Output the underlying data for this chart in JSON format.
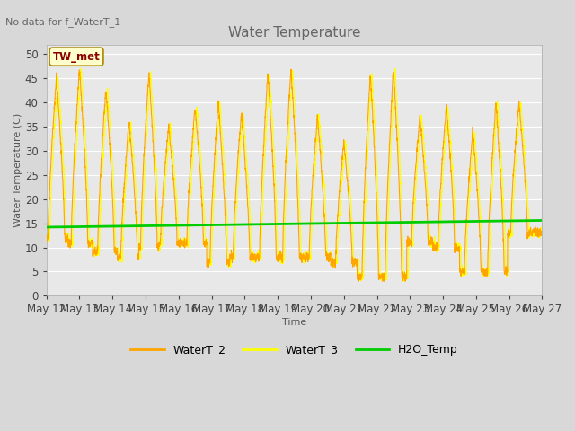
{
  "title": "Water Temperature",
  "ylabel": "Water Temperature (C)",
  "xlabel": "Time",
  "top_label": "No data for f_WaterT_1",
  "annotation_box": "TW_met",
  "ylim": [
    0,
    52
  ],
  "yticks": [
    0,
    5,
    10,
    15,
    20,
    25,
    30,
    35,
    40,
    45,
    50
  ],
  "x_tick_labels": [
    "May 12",
    "May 13",
    "May 14",
    "May 15",
    "May 16",
    "May 17",
    "May 18",
    "May 19",
    "May 20",
    "May 21",
    "May 22",
    "May 23",
    "May 24",
    "May 25",
    "May 26",
    "May 27"
  ],
  "fig_bg_color": "#d8d8d8",
  "plot_bg_color": "#e8e8e8",
  "grid_color": "#ffffff",
  "watert2_color": "#FFA500",
  "watert3_color": "#FFFF00",
  "h2o_color": "#00CC00",
  "legend_labels": [
    "WaterT_2",
    "WaterT_3",
    "H2O_Temp"
  ]
}
